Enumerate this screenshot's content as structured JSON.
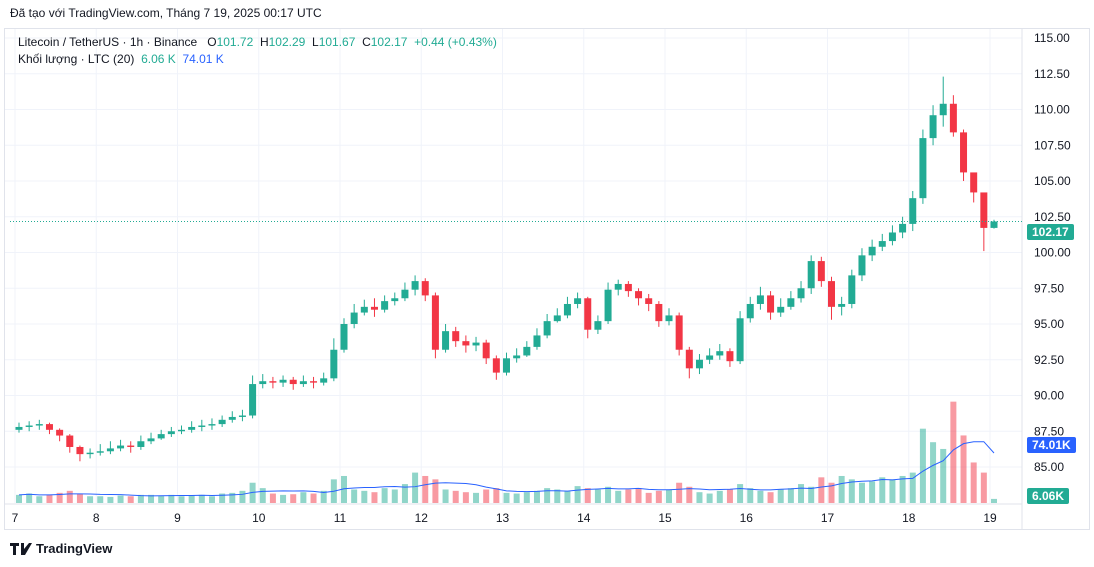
{
  "caption": "Đã tạo với TradingView.com, Tháng 7 19, 2025 00:17 UTC",
  "legend": {
    "symbol": "Litecoin / TetherUS · 1h · Binance",
    "o_label": "O",
    "o": "101.72",
    "h_label": "H",
    "h": "102.29",
    "l_label": "L",
    "l": "101.67",
    "c_label": "C",
    "c": "102.17",
    "change": "+0.44 (+0.43%)",
    "volume_label": "Khối lượng · LTC (20)",
    "volume": "6.06 K",
    "volume_ma": "74.01 K"
  },
  "logo": "TradingView",
  "colors": {
    "up": "#22ab94",
    "down": "#f23645",
    "ma": "#2962ff"
  },
  "chart_data": {
    "type": "candlestick",
    "price_ticks": [
      "115.00",
      "112.50",
      "110.00",
      "107.50",
      "105.00",
      "102.50",
      "100.00",
      "97.50",
      "95.00",
      "92.50",
      "90.00",
      "87.50",
      "85.00"
    ],
    "ylim": [
      85,
      115
    ],
    "date_ticks": [
      "7",
      "8",
      "9",
      "10",
      "11",
      "12",
      "13",
      "14",
      "15",
      "16",
      "17",
      "18",
      "19"
    ],
    "last_price": "102.17",
    "volume_last": "6.06K",
    "volume_ma_last": "74.01K",
    "first_open": 87.6,
    "close": [
      87.8,
      87.9,
      88.0,
      87.6,
      87.2,
      86.4,
      85.9,
      86.0,
      86.1,
      86.3,
      86.5,
      86.4,
      86.8,
      87.0,
      87.3,
      87.5,
      87.6,
      87.8,
      87.9,
      88.0,
      88.3,
      88.5,
      88.6,
      90.8,
      91.0,
      90.9,
      91.1,
      90.8,
      91.0,
      90.9,
      91.2,
      93.2,
      95.0,
      95.8,
      96.2,
      96.0,
      96.6,
      96.8,
      97.4,
      98.0,
      97.0,
      93.2,
      94.5,
      93.8,
      93.5,
      93.7,
      92.6,
      91.6,
      92.6,
      92.8,
      93.4,
      94.2,
      95.2,
      95.6,
      96.4,
      96.8,
      94.6,
      95.2,
      97.4,
      97.8,
      97.3,
      96.8,
      96.4,
      95.2,
      95.6,
      93.2,
      91.9,
      92.5,
      92.8,
      93.1,
      92.4,
      95.4,
      96.4,
      97.0,
      95.8,
      96.2,
      96.8,
      97.5,
      99.4,
      98.0,
      96.2,
      96.4,
      98.4,
      99.8,
      100.4,
      100.8,
      101.4,
      102.0,
      103.8,
      108.0,
      109.6,
      110.4,
      108.4,
      105.6,
      104.2,
      101.72,
      102.17
    ],
    "high": [
      88.1,
      88.2,
      88.3,
      88.1,
      87.7,
      87.3,
      86.5,
      86.3,
      86.6,
      86.8,
      86.9,
      86.8,
      87.2,
      87.4,
      87.6,
      87.8,
      87.9,
      88.2,
      88.3,
      88.4,
      88.6,
      88.9,
      89.0,
      91.4,
      91.5,
      91.3,
      91.4,
      91.3,
      91.4,
      91.3,
      91.6,
      94.0,
      95.4,
      96.4,
      96.7,
      96.8,
      97.0,
      97.2,
      97.9,
      98.4,
      98.2,
      97.2,
      95.0,
      94.8,
      94.2,
      94.1,
      93.9,
      92.8,
      93.0,
      93.3,
      93.8,
      94.7,
      95.7,
      96.1,
      96.9,
      97.2,
      96.9,
      95.6,
      97.9,
      98.1,
      98.0,
      97.5,
      97.1,
      96.6,
      96.1,
      95.8,
      93.4,
      92.9,
      93.3,
      93.6,
      93.3,
      95.9,
      96.9,
      97.6,
      97.3,
      96.8,
      97.3,
      98.0,
      99.8,
      99.7,
      98.3,
      96.9,
      98.8,
      100.3,
      100.9,
      101.3,
      101.9,
      102.5,
      104.3,
      108.6,
      110.3,
      112.3,
      111.0,
      108.6,
      105.2,
      104.0,
      102.29
    ],
    "low": [
      87.4,
      87.5,
      87.6,
      87.3,
      86.8,
      86.0,
      85.4,
      85.6,
      85.8,
      85.9,
      86.1,
      86.0,
      86.2,
      86.6,
      86.9,
      87.1,
      87.3,
      87.4,
      87.5,
      87.6,
      87.8,
      88.1,
      88.2,
      88.4,
      90.5,
      90.5,
      90.6,
      90.4,
      90.6,
      90.5,
      90.7,
      91.0,
      93.0,
      94.7,
      95.6,
      95.5,
      95.8,
      96.3,
      96.6,
      97.0,
      96.6,
      92.6,
      93.0,
      93.4,
      93.0,
      93.1,
      92.2,
      91.1,
      91.4,
      92.3,
      92.7,
      93.2,
      94.0,
      95.1,
      95.4,
      96.1,
      94.0,
      94.3,
      95.0,
      97.0,
      96.9,
      96.3,
      95.9,
      94.8,
      94.9,
      92.8,
      91.2,
      91.5,
      92.2,
      92.5,
      92.0,
      92.2,
      95.1,
      96.0,
      95.3,
      95.5,
      96.0,
      96.5,
      97.1,
      97.6,
      95.3,
      95.6,
      96.1,
      98.0,
      99.4,
      100.1,
      100.5,
      101.0,
      101.5,
      103.4,
      107.5,
      108.8,
      108.1,
      105.0,
      103.5,
      100.1,
      101.67
    ],
    "volume_k": [
      12,
      14,
      10,
      12,
      15,
      18,
      14,
      10,
      10,
      9,
      11,
      10,
      12,
      12,
      11,
      12,
      10,
      11,
      12,
      10,
      14,
      15,
      18,
      30,
      22,
      14,
      12,
      13,
      16,
      14,
      18,
      35,
      40,
      20,
      18,
      16,
      22,
      20,
      28,
      45,
      40,
      35,
      20,
      18,
      16,
      15,
      20,
      22,
      15,
      14,
      16,
      18,
      22,
      20,
      18,
      25,
      22,
      20,
      24,
      18,
      20,
      22,
      15,
      18,
      20,
      30,
      24,
      16,
      14,
      18,
      20,
      28,
      22,
      18,
      16,
      20,
      22,
      28,
      24,
      38,
      30,
      40,
      35,
      30,
      32,
      38,
      35,
      40,
      45,
      110,
      90,
      80,
      150,
      100,
      60,
      45,
      6.06
    ]
  }
}
